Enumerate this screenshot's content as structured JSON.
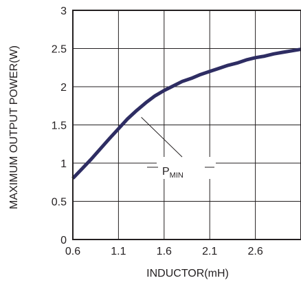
{
  "chart_data": {
    "type": "line",
    "xlabel": "INDUCTOR(mH)",
    "ylabel": "MAXIMUM OUTPUT POWER(W)",
    "xlim": [
      0.6,
      3.1
    ],
    "ylim": [
      0,
      3
    ],
    "x_ticks": [
      "0.6",
      "1.1",
      "1.6",
      "2.1",
      "2.6"
    ],
    "y_ticks": [
      "0",
      "0.5",
      "1",
      "1.5",
      "2",
      "2.5",
      "3"
    ],
    "grid": true,
    "series_color": "#2e2d63",
    "annotation": {
      "main": "P",
      "sub": "MIN",
      "anchor": [
        1.35,
        1.6
      ]
    },
    "series": [
      {
        "x": [
          0.6,
          0.8,
          1.0,
          1.1,
          1.2,
          1.3,
          1.4,
          1.5,
          1.6,
          1.7,
          1.8,
          1.9,
          2.0,
          2.1,
          2.2,
          2.3,
          2.4,
          2.5,
          2.6,
          2.7,
          2.8,
          2.9,
          3.0,
          3.1
        ],
        "y": [
          0.8,
          1.05,
          1.32,
          1.45,
          1.58,
          1.69,
          1.79,
          1.88,
          1.95,
          2.01,
          2.07,
          2.11,
          2.16,
          2.2,
          2.24,
          2.28,
          2.31,
          2.35,
          2.38,
          2.4,
          2.43,
          2.45,
          2.47,
          2.49
        ]
      }
    ]
  }
}
